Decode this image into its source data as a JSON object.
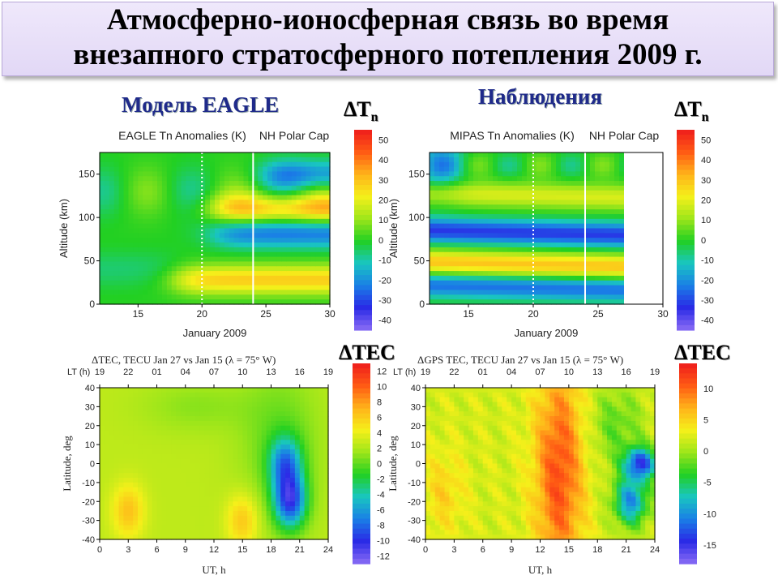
{
  "title": {
    "line1": "Атмосферно-ионосферная связь во время",
    "line2": "внезапного стратосферного потепления 2009 г."
  },
  "sections": {
    "model": "Модель EAGLE",
    "obs": "Наблюдения"
  },
  "colorbar_titles": {
    "dtn": "ΔT",
    "dtn_sub": "n",
    "dtec": "ΔTEC"
  },
  "colors": {
    "scale": [
      "#8a6cf5",
      "#2a2ae6",
      "#1a7fe6",
      "#19c6c0",
      "#22d022",
      "#9ee61a",
      "#f5f01a",
      "#ffb21a",
      "#ff5a14",
      "#ee1c1c"
    ],
    "title_bg": "#e6ddf7",
    "section_text": "#1f2a8a"
  },
  "chart_data": [
    {
      "type": "heatmap",
      "title": "EAGLE Tn Anomalies (K)",
      "subtitle": "NH Polar Cap",
      "xlabel": "January 2009",
      "ylabel": "Altitude (km)",
      "xlim": [
        12,
        30
      ],
      "ylim": [
        0,
        175
      ],
      "xticks": [
        "15",
        "20",
        "25",
        "30"
      ],
      "yticks": [
        "0",
        "50",
        "100",
        "150"
      ],
      "vlines": [
        {
          "x": 20,
          "style": "dotted"
        },
        {
          "x": 24,
          "style": "solid"
        }
      ],
      "colorbar": {
        "ticks": [
          "50",
          "40",
          "30",
          "20",
          "10",
          "0",
          "-10",
          "-20",
          "-30",
          "-40"
        ],
        "range": [
          -45,
          55
        ]
      },
      "bands": [
        {
          "y": 28,
          "value": 28,
          "x_from": 18
        },
        {
          "y": 82,
          "value": -24,
          "x_from": 21
        },
        {
          "y": 110,
          "value": 30,
          "x_from": 21
        },
        {
          "y": 150,
          "value": -22,
          "x_from": 25
        }
      ]
    },
    {
      "type": "heatmap",
      "title": "MIPAS Tn Anomalies (K)",
      "subtitle": "NH Polar Cap",
      "xlabel": "January 2009",
      "ylabel": "Altitude (km)",
      "xlim": [
        12,
        30
      ],
      "ylim": [
        0,
        175
      ],
      "data_end_x": 27,
      "xticks": [
        "15",
        "20",
        "25",
        "30"
      ],
      "yticks": [
        "0",
        "50",
        "100",
        "150"
      ],
      "vlines": [
        {
          "x": 20,
          "style": "dotted"
        },
        {
          "x": 24,
          "style": "solid"
        }
      ],
      "colorbar": {
        "ticks": [
          "50",
          "40",
          "30",
          "20",
          "10",
          "0",
          "-10",
          "-20",
          "-30",
          "-40"
        ],
        "range": [
          -45,
          55
        ]
      },
      "bands": [
        {
          "y": 22,
          "value": -25
        },
        {
          "y": 48,
          "value": 30
        },
        {
          "y": 85,
          "value": -32
        },
        {
          "y": 128,
          "value": 18
        }
      ]
    },
    {
      "type": "heatmap",
      "title": "ΔTEC, TECU    Jan 27 vs Jan 15 (λ = 75° W)",
      "xlabel": "UT, h",
      "ylabel": "Latitude, deg",
      "top_axis_label": "LT (h)",
      "xlim": [
        0,
        24
      ],
      "ylim": [
        -40,
        40
      ],
      "xticks": [
        "0",
        "3",
        "6",
        "9",
        "12",
        "15",
        "18",
        "21",
        "24"
      ],
      "top_ticks": [
        "19",
        "22",
        "01",
        "04",
        "07",
        "10",
        "13",
        "16",
        "19"
      ],
      "yticks": [
        "40",
        "30",
        "20",
        "10",
        "0",
        "-10",
        "-20",
        "-30",
        "-40"
      ],
      "colorbar": {
        "ticks": [
          "12",
          "10",
          "8",
          "6",
          "4",
          "2",
          "0",
          "-2",
          "-4",
          "-6",
          "-8",
          "-10",
          "-12"
        ],
        "range": [
          -13,
          13
        ]
      },
      "features": [
        {
          "x": 20,
          "y": -20,
          "value": -11
        },
        {
          "x": 19.5,
          "y": 0,
          "value": -8
        },
        {
          "x": 3,
          "y": -25,
          "value": 4
        },
        {
          "x": 15,
          "y": -30,
          "value": 4
        }
      ]
    },
    {
      "type": "heatmap",
      "title": "ΔGPS TEC, TECU    Jan 27 vs Jan 15 (λ = 75° W)",
      "xlabel": "UT, h",
      "ylabel": "Latitude, deg",
      "top_axis_label": "LT (h)",
      "xlim": [
        0,
        24
      ],
      "ylim": [
        -40,
        40
      ],
      "xticks": [
        "0",
        "3",
        "6",
        "9",
        "12",
        "15",
        "18",
        "21",
        "24"
      ],
      "top_ticks": [
        "19",
        "22",
        "01",
        "04",
        "07",
        "10",
        "13",
        "16",
        "19"
      ],
      "yticks": [
        "40",
        "30",
        "20",
        "10",
        "0",
        "-10",
        "-20",
        "-30",
        "-40"
      ],
      "colorbar": {
        "ticks": [
          "10",
          "5",
          "0",
          "-5",
          "-10",
          "-15"
        ],
        "range": [
          -18,
          14
        ]
      },
      "features": [
        {
          "x": 14,
          "y": 0,
          "value": 12
        },
        {
          "x": 22.5,
          "y": 0,
          "value": -16
        },
        {
          "x": 21.5,
          "y": -20,
          "value": -14
        }
      ]
    }
  ]
}
